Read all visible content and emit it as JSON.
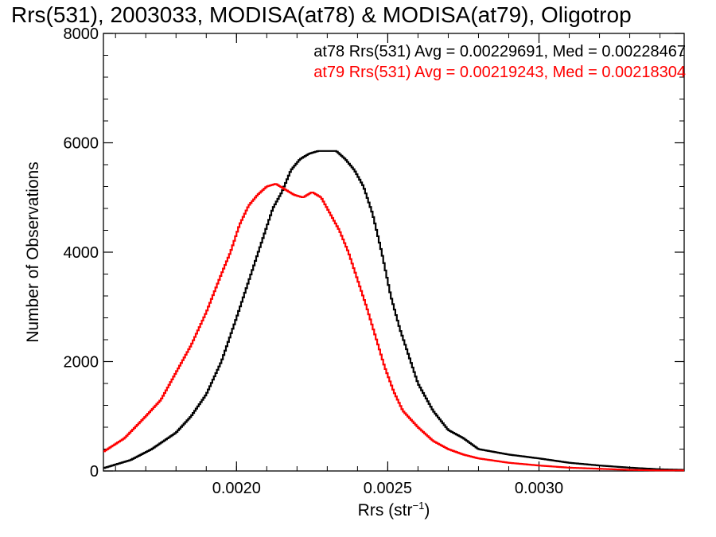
{
  "chart_data": {
    "type": "line",
    "title": "Rrs(531), 2003033, MODISA(at78) & MODISA(at79), Oligotrop",
    "xlabel": "Rrs (str",
    "xlabel_sup": "−1",
    "xlabel_close": ")",
    "ylabel": "Number of Observations",
    "xlim": [
      0.00156,
      0.00348
    ],
    "ylim": [
      0,
      8000
    ],
    "x_ticks": [
      {
        "value": 0.002,
        "label": "0.0020"
      },
      {
        "value": 0.0025,
        "label": "0.0025"
      },
      {
        "value": 0.003,
        "label": "0.0030"
      }
    ],
    "y_ticks": [
      {
        "value": 0,
        "label": "0"
      },
      {
        "value": 2000,
        "label": "2000"
      },
      {
        "value": 4000,
        "label": "4000"
      },
      {
        "value": 6000,
        "label": "6000"
      },
      {
        "value": 8000,
        "label": "8000"
      }
    ],
    "grid": false,
    "legend_position": "top-right",
    "legend": [
      {
        "text": "at78 Rrs(531) Avg = 0.00229691, Med = 0.00228467",
        "color": "#000000"
      },
      {
        "text": "at79 Rrs(531) Avg = 0.00219243, Med = 0.00218304",
        "color": "#ff0000"
      }
    ],
    "series": [
      {
        "color": "#000000",
        "x": [
          0.00156,
          0.00165,
          0.00172,
          0.0018,
          0.00185,
          0.0019,
          0.00195,
          0.002,
          0.00203,
          0.00206,
          0.00209,
          0.00212,
          0.00215,
          0.00218,
          0.00221,
          0.00224,
          0.00227,
          0.0023,
          0.00233,
          0.00236,
          0.00239,
          0.00242,
          0.00245,
          0.00248,
          0.00251,
          0.00254,
          0.00257,
          0.0026,
          0.00265,
          0.0027,
          0.00275,
          0.0028,
          0.0029,
          0.003,
          0.0031,
          0.0032,
          0.0033,
          0.0034,
          0.00348
        ],
        "y": [
          50,
          200,
          400,
          700,
          1000,
          1400,
          2000,
          2800,
          3300,
          3800,
          4300,
          4800,
          5100,
          5500,
          5700,
          5800,
          5850,
          5850,
          5850,
          5700,
          5500,
          5200,
          4700,
          4000,
          3200,
          2600,
          2100,
          1600,
          1100,
          750,
          600,
          400,
          300,
          230,
          150,
          100,
          60,
          30,
          20
        ]
      },
      {
        "color": "#ff0000",
        "x": [
          0.00156,
          0.00163,
          0.0017,
          0.00175,
          0.0018,
          0.00185,
          0.0019,
          0.00195,
          0.00198,
          0.00201,
          0.00204,
          0.00207,
          0.0021,
          0.00213,
          0.00216,
          0.00219,
          0.00222,
          0.00225,
          0.00228,
          0.00231,
          0.00234,
          0.00237,
          0.0024,
          0.00243,
          0.00246,
          0.00249,
          0.00252,
          0.00255,
          0.0026,
          0.00265,
          0.0027,
          0.00275,
          0.0028,
          0.0029,
          0.003,
          0.0031,
          0.0032,
          0.0033,
          0.0034,
          0.00348
        ],
        "y": [
          350,
          600,
          1000,
          1300,
          1800,
          2300,
          2900,
          3600,
          4000,
          4500,
          4850,
          5050,
          5200,
          5250,
          5150,
          5050,
          5000,
          5100,
          5000,
          4700,
          4400,
          4000,
          3500,
          3000,
          2450,
          1900,
          1450,
          1100,
          800,
          550,
          400,
          300,
          230,
          150,
          100,
          60,
          40,
          20,
          10,
          10
        ]
      }
    ]
  }
}
